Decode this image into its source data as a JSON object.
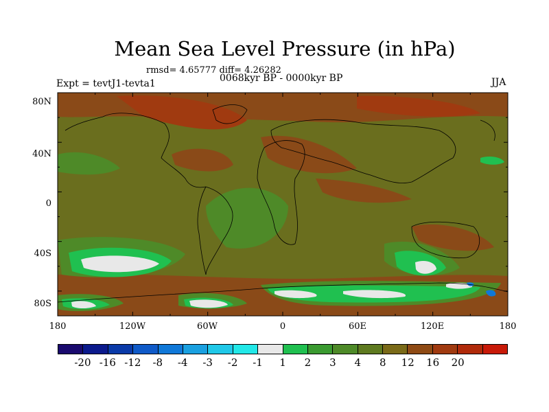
{
  "title": "Mean Sea Level Pressure (in hPa)",
  "stats": "rmsd= 4.65777  diff= 4.26282",
  "period": "0068kyr BP - 0000kyr BP",
  "experiment": "Expt = tevtJ1-tevta1",
  "season": "JJA",
  "lat_labels": [
    "80N",
    "40N",
    "0",
    "40S",
    "80S"
  ],
  "lon_labels": [
    "180",
    "120W",
    "60W",
    "0",
    "60E",
    "120E",
    "180"
  ],
  "colorbar": {
    "colors": [
      "#1a0a6e",
      "#0b1a8c",
      "#0a3aa8",
      "#0f5ac8",
      "#1078d8",
      "#1aa0e0",
      "#20c8e8",
      "#22e8e8",
      "#e8e8e8",
      "#20c050",
      "#3a9a30",
      "#4e8a28",
      "#5e7a20",
      "#7a6a18",
      "#8e4a14",
      "#a03a10",
      "#b02a0a",
      "#c81a08"
    ],
    "labels": [
      "-20",
      "-16",
      "-12",
      "-8",
      "-4",
      "-3",
      "-2",
      "-1",
      "1",
      "2",
      "3",
      "4",
      "8",
      "12",
      "16",
      "20"
    ]
  },
  "field_colors": {
    "base_olive": "#6a6e1e",
    "brown": "#8a4a18",
    "red_brown": "#a03a10",
    "green": "#4e8a28",
    "bright_green": "#20c050",
    "white": "#e8e8e8",
    "blue": "#1078d8"
  }
}
